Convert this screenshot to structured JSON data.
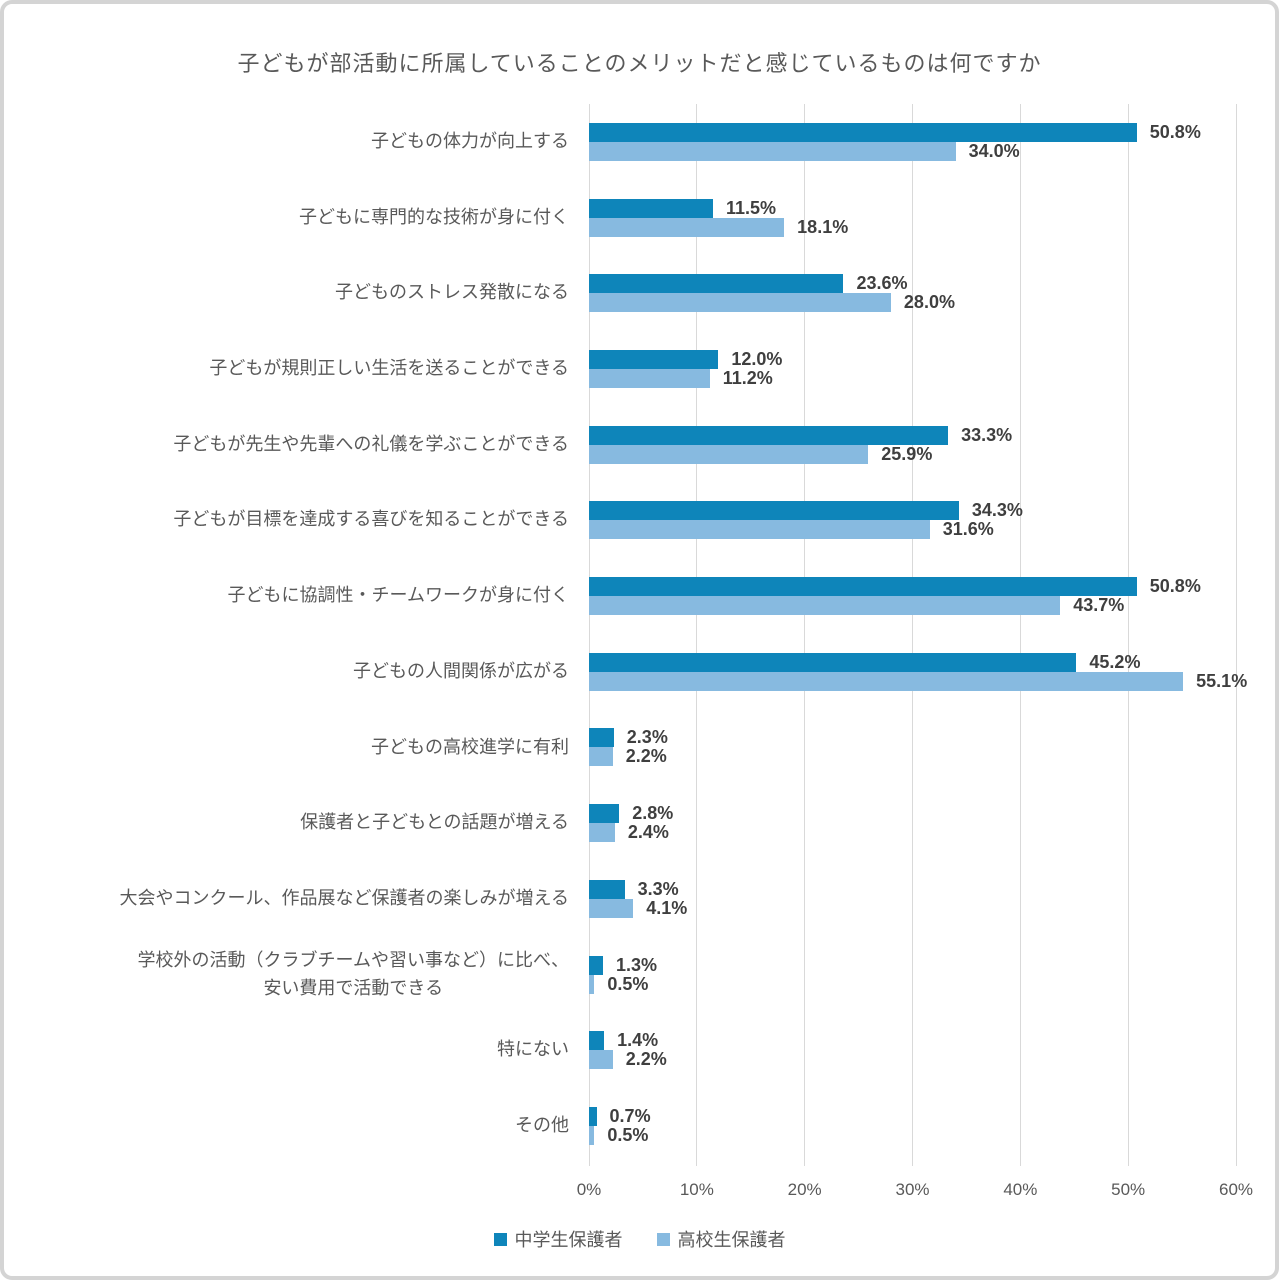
{
  "title": "子どもが部活動に所属していることのメリットだと感じているものは何ですか",
  "chart_data": {
    "type": "bar",
    "orientation": "horizontal",
    "title": "子どもが部活動に所属していることのメリットだと感じているものは何ですか",
    "xlim": [
      0,
      60
    ],
    "grid": true,
    "legend_position": "bottom",
    "x_tick_labels": [
      "0%",
      "10%",
      "20%",
      "30%",
      "40%",
      "50%",
      "60%"
    ],
    "x_tick_values": [
      0,
      10,
      20,
      30,
      40,
      50,
      60
    ],
    "categories": [
      "子どもの体力が向上する",
      "子どもに専門的な技術が身に付く",
      "子どものストレス発散になる",
      "子どもが規則正しい生活を送ることができる",
      "子どもが先生や先輩への礼儀を学ぶことができる",
      "子どもが目標を達成する喜びを知ることができる",
      "子どもに協調性・チームワークが身に付く",
      "子どもの人間関係が広がる",
      "子どもの高校進学に有利",
      "保護者と子どもとの話題が増える",
      "大会やコンクール、作品展など保護者の楽しみが増える",
      "学校外の活動（クラブチームや習い事など）に比べ、\n安い費用で活動できる",
      "特にない",
      "その他"
    ],
    "series": [
      {
        "name": "中学生保護者",
        "color": "#0e85ba",
        "values": [
          50.8,
          11.5,
          23.6,
          12.0,
          33.3,
          34.3,
          50.8,
          45.2,
          2.3,
          2.8,
          3.3,
          1.3,
          1.4,
          0.7
        ],
        "labels": [
          "50.8%",
          "11.5%",
          "23.6%",
          "12.0%",
          "33.3%",
          "34.3%",
          "50.8%",
          "45.2%",
          "2.3%",
          "2.8%",
          "3.3%",
          "1.3%",
          "1.4%",
          "0.7%"
        ]
      },
      {
        "name": "高校生保護者",
        "color": "#87bae0",
        "values": [
          34.0,
          18.1,
          28.0,
          11.2,
          25.9,
          31.6,
          43.7,
          55.1,
          2.2,
          2.4,
          4.1,
          0.5,
          2.2,
          0.5
        ],
        "labels": [
          "34.0%",
          "18.1%",
          "28.0%",
          "11.2%",
          "25.9%",
          "31.6%",
          "43.7%",
          "55.1%",
          "2.2%",
          "2.4%",
          "4.1%",
          "0.5%",
          "2.2%",
          "0.5%"
        ]
      }
    ]
  },
  "colors": {
    "grid_line": "#d9d9d9",
    "title_text": "#595959",
    "category_text": "#595959",
    "value_text": "#3f3f3f",
    "card_border": "#d4d4d4",
    "background": "#ffffff"
  }
}
